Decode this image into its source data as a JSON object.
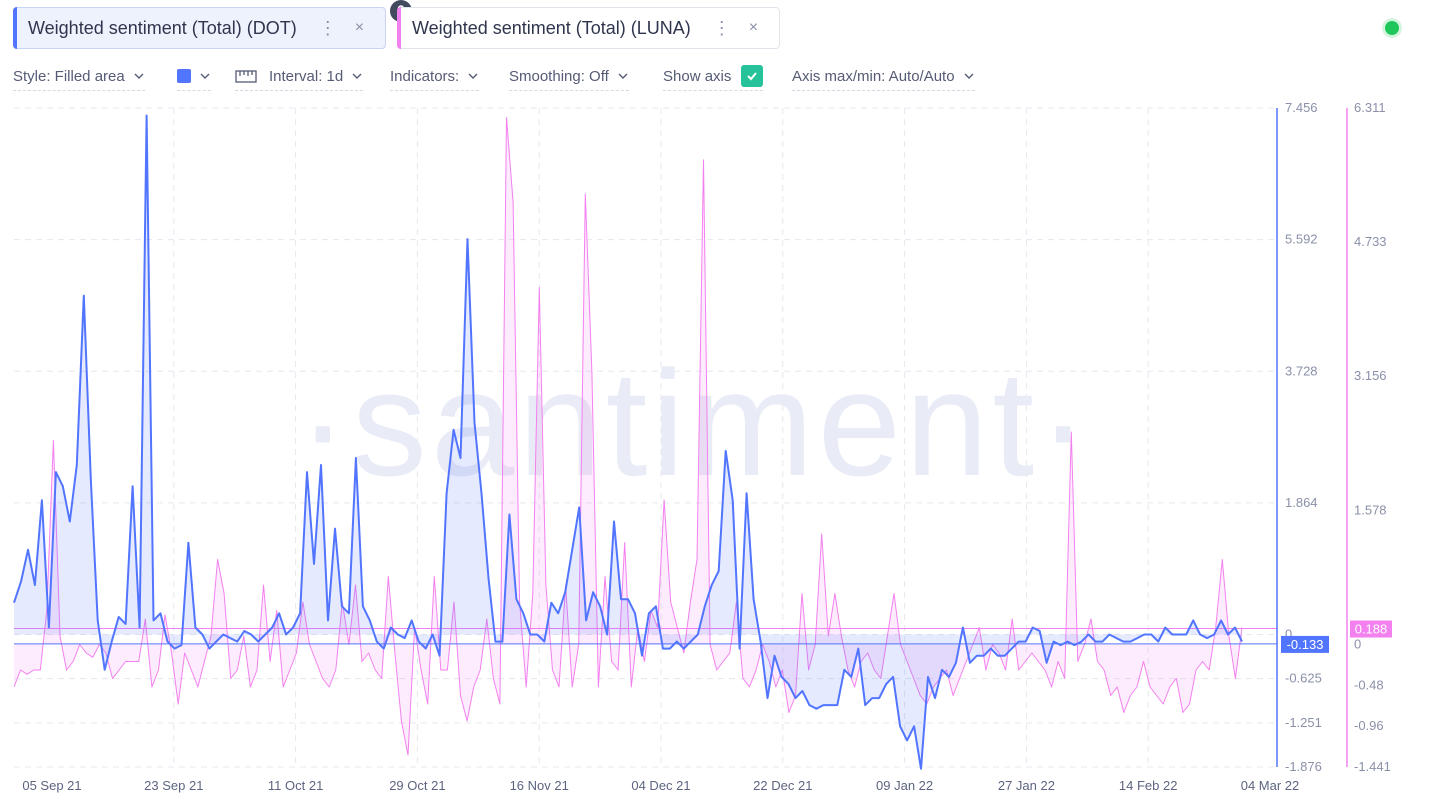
{
  "tabs": [
    {
      "label": "Weighted sentiment (Total) (DOT)",
      "menu": "⋮",
      "close": "×",
      "color": "#5275ff"
    },
    {
      "label": "Weighted sentiment (Total) (LUNA)",
      "menu": "⋮",
      "close": "×",
      "color": "#f380ef"
    }
  ],
  "toolbar": {
    "style_label": "Style: Filled area",
    "color_swatch": "#5275ff",
    "interval_label": "Interval: 1d",
    "indicators_label": "Indicators:",
    "smoothing_label": "Smoothing: Off",
    "show_axis_label": "Show axis",
    "show_axis_checked": true,
    "axis_minmax_label": "Axis max/min: Auto/Auto"
  },
  "status": {
    "color": "#1fc75a"
  },
  "watermark": "·santiment·",
  "chart_data": {
    "type": "area",
    "x_ticks": [
      "05 Sep 21",
      "23 Sep 21",
      "11 Oct 21",
      "29 Oct 21",
      "16 Nov 21",
      "04 Dec 21",
      "22 Dec 21",
      "09 Jan 22",
      "27 Jan 22",
      "14 Feb 22",
      "04 Mar 22"
    ],
    "y_axis_left": {
      "ticks": [
        "7.456",
        "5.592",
        "3.728",
        "1.864",
        "0",
        "-0.625",
        "-1.251",
        "-1.876"
      ],
      "range": [
        -1.876,
        7.456
      ],
      "color": "#5275ff",
      "current": "-0.133"
    },
    "y_axis_right": {
      "ticks": [
        "6.311",
        "4.733",
        "3.156",
        "1.578",
        "0",
        "-0.48",
        "-0.96",
        "-1.441"
      ],
      "range": [
        -1.441,
        6.311
      ],
      "color": "#f380ef",
      "current": "0.188"
    },
    "grid": true,
    "series": [
      {
        "name": "Weighted sentiment (Total) (DOT)",
        "color": "#5275ff",
        "axis": "left",
        "values": [
          0.45,
          0.75,
          1.2,
          0.7,
          1.9,
          0.1,
          2.3,
          2.1,
          1.6,
          2.4,
          4.8,
          2.2,
          0.2,
          -0.5,
          -0.1,
          0.25,
          0.15,
          2.1,
          0.1,
          7.35,
          0.2,
          0.3,
          -0.1,
          -0.2,
          -0.15,
          1.3,
          0.1,
          0.0,
          -0.2,
          -0.1,
          0.0,
          -0.05,
          -0.1,
          0.05,
          0.0,
          -0.1,
          0.0,
          0.1,
          0.3,
          0.0,
          0.1,
          0.3,
          2.3,
          1.0,
          2.4,
          0.2,
          1.5,
          0.4,
          0.3,
          2.5,
          0.4,
          0.2,
          -0.1,
          -0.2,
          0.1,
          0.0,
          -0.05,
          0.2,
          -0.1,
          -0.2,
          0.0,
          -0.3,
          2.0,
          2.9,
          2.5,
          5.6,
          3.0,
          2.0,
          0.8,
          -0.1,
          -0.1,
          1.7,
          0.5,
          0.3,
          0.0,
          0.0,
          -0.1,
          0.45,
          0.3,
          0.6,
          1.2,
          1.8,
          0.2,
          0.6,
          0.4,
          0.0,
          1.6,
          0.5,
          0.5,
          0.3,
          -0.3,
          0.3,
          0.4,
          -0.2,
          -0.2,
          -0.1,
          -0.2,
          -0.1,
          0.0,
          0.4,
          0.7,
          0.9,
          2.6,
          1.9,
          -0.2,
          2.0,
          0.5,
          -0.1,
          -0.9,
          -0.3,
          -0.6,
          -0.7,
          -0.9,
          -0.8,
          -1.0,
          -1.05,
          -1.0,
          -1.0,
          -1.0,
          -0.5,
          -0.6,
          -0.2,
          -1.0,
          -0.9,
          -0.9,
          -0.7,
          -0.6,
          -1.3,
          -1.5,
          -1.3,
          -1.9,
          -0.6,
          -0.9,
          -0.5,
          -0.6,
          -0.4,
          0.1,
          -0.4,
          -0.3,
          -0.3,
          -0.2,
          -0.3,
          -0.3,
          -0.2,
          -0.1,
          -0.1,
          0.1,
          0.05,
          -0.4,
          -0.1,
          -0.15,
          -0.1,
          -0.15,
          -0.1,
          0.0,
          -0.1,
          -0.1,
          0.0,
          -0.05,
          -0.1,
          -0.1,
          -0.05,
          0.0,
          0.0,
          -0.1,
          0.1,
          0.0,
          0.0,
          0.0,
          0.2,
          0.0,
          -0.05,
          0.0,
          0.2,
          0.0,
          0.1,
          -0.1
        ]
      },
      {
        "name": "Weighted sentiment (Total) (LUNA)",
        "color": "#f380ef",
        "axis": "right",
        "values": [
          -0.5,
          -0.3,
          -0.35,
          -0.3,
          -0.3,
          0.4,
          2.4,
          0.1,
          -0.3,
          -0.2,
          0.0,
          -0.1,
          -0.15,
          0.0,
          -0.1,
          -0.4,
          -0.3,
          -0.2,
          -0.2,
          -0.2,
          0.3,
          -0.5,
          -0.3,
          0.35,
          -0.1,
          -0.7,
          -0.1,
          -0.3,
          -0.5,
          -0.2,
          0.1,
          1.0,
          0.6,
          -0.4,
          -0.3,
          0.1,
          -0.5,
          -0.3,
          0.7,
          -0.2,
          0.4,
          -0.5,
          -0.3,
          -0.1,
          0.5,
          0.0,
          -0.2,
          -0.4,
          -0.5,
          -0.3,
          0.5,
          0.0,
          0.7,
          -0.2,
          -0.1,
          -0.3,
          -0.4,
          0.8,
          -0.1,
          -0.9,
          -1.3,
          0.2,
          -0.3,
          -0.7,
          0.8,
          -0.3,
          -0.3,
          0.5,
          -0.6,
          -0.9,
          -0.5,
          -0.3,
          0.3,
          -0.4,
          -0.7,
          6.2,
          5.2,
          0.5,
          -0.5,
          0.6,
          4.2,
          0.7,
          -0.3,
          -0.5,
          0.7,
          -0.5,
          0.0,
          5.3,
          3.2,
          -0.5,
          0.8,
          -0.2,
          -0.3,
          1.2,
          -0.5,
          0.2,
          -0.2,
          0.4,
          0.2,
          1.7,
          0.5,
          0.2,
          -0.1,
          0.5,
          1.0,
          5.7,
          0.0,
          -0.3,
          -0.2,
          -0.1,
          0.5,
          -0.4,
          -0.5,
          -0.3,
          0.0,
          -0.2,
          -0.5,
          -0.3,
          -0.8,
          -0.6,
          0.6,
          -0.3,
          0.0,
          1.3,
          0.1,
          0.6,
          0.1,
          -0.3,
          -0.5,
          -0.2,
          -0.1,
          -0.3,
          -0.4,
          0.1,
          0.6,
          0.0,
          -0.2,
          -0.4,
          -0.6,
          -0.7,
          -0.5,
          -0.4,
          -0.3,
          -0.6,
          -0.4,
          -0.2,
          0.0,
          0.2,
          -0.3,
          0.0,
          -0.1,
          -0.3,
          0.3,
          -0.3,
          -0.2,
          -0.1,
          -0.2,
          -0.3,
          -0.5,
          -0.2,
          -0.4,
          2.5,
          -0.2,
          0.0,
          0.3,
          -0.2,
          -0.3,
          -0.6,
          -0.5,
          -0.8,
          -0.6,
          -0.5,
          -0.2,
          -0.5,
          -0.6,
          -0.7,
          -0.5,
          -0.4,
          -0.8,
          -0.7,
          -0.3,
          -0.2,
          -0.3,
          0.2,
          1.0,
          0.1,
          -0.4,
          0.2
        ]
      }
    ]
  }
}
